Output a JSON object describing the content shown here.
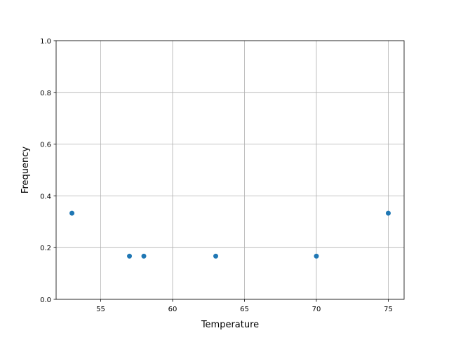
{
  "chart_data": {
    "type": "scatter",
    "title": "",
    "xlabel": "Temperature",
    "ylabel": "Frequency",
    "xlim": [
      51.9,
      76.1
    ],
    "ylim": [
      0,
      1.0
    ],
    "xticks": [
      55,
      60,
      65,
      70,
      75
    ],
    "yticks": [
      0.0,
      0.2,
      0.4,
      0.6,
      0.8,
      1.0
    ],
    "xtick_labels": [
      "55",
      "60",
      "65",
      "70",
      "75"
    ],
    "ytick_labels": [
      "0.0",
      "0.2",
      "0.4",
      "0.6",
      "0.8",
      "1.0"
    ],
    "grid": true,
    "color": "#1f77b4",
    "points": [
      {
        "x": 53,
        "y": 0.333
      },
      {
        "x": 57,
        "y": 0.167
      },
      {
        "x": 58,
        "y": 0.167
      },
      {
        "x": 63,
        "y": 0.167
      },
      {
        "x": 70,
        "y": 0.167
      },
      {
        "x": 75,
        "y": 0.333
      }
    ]
  }
}
